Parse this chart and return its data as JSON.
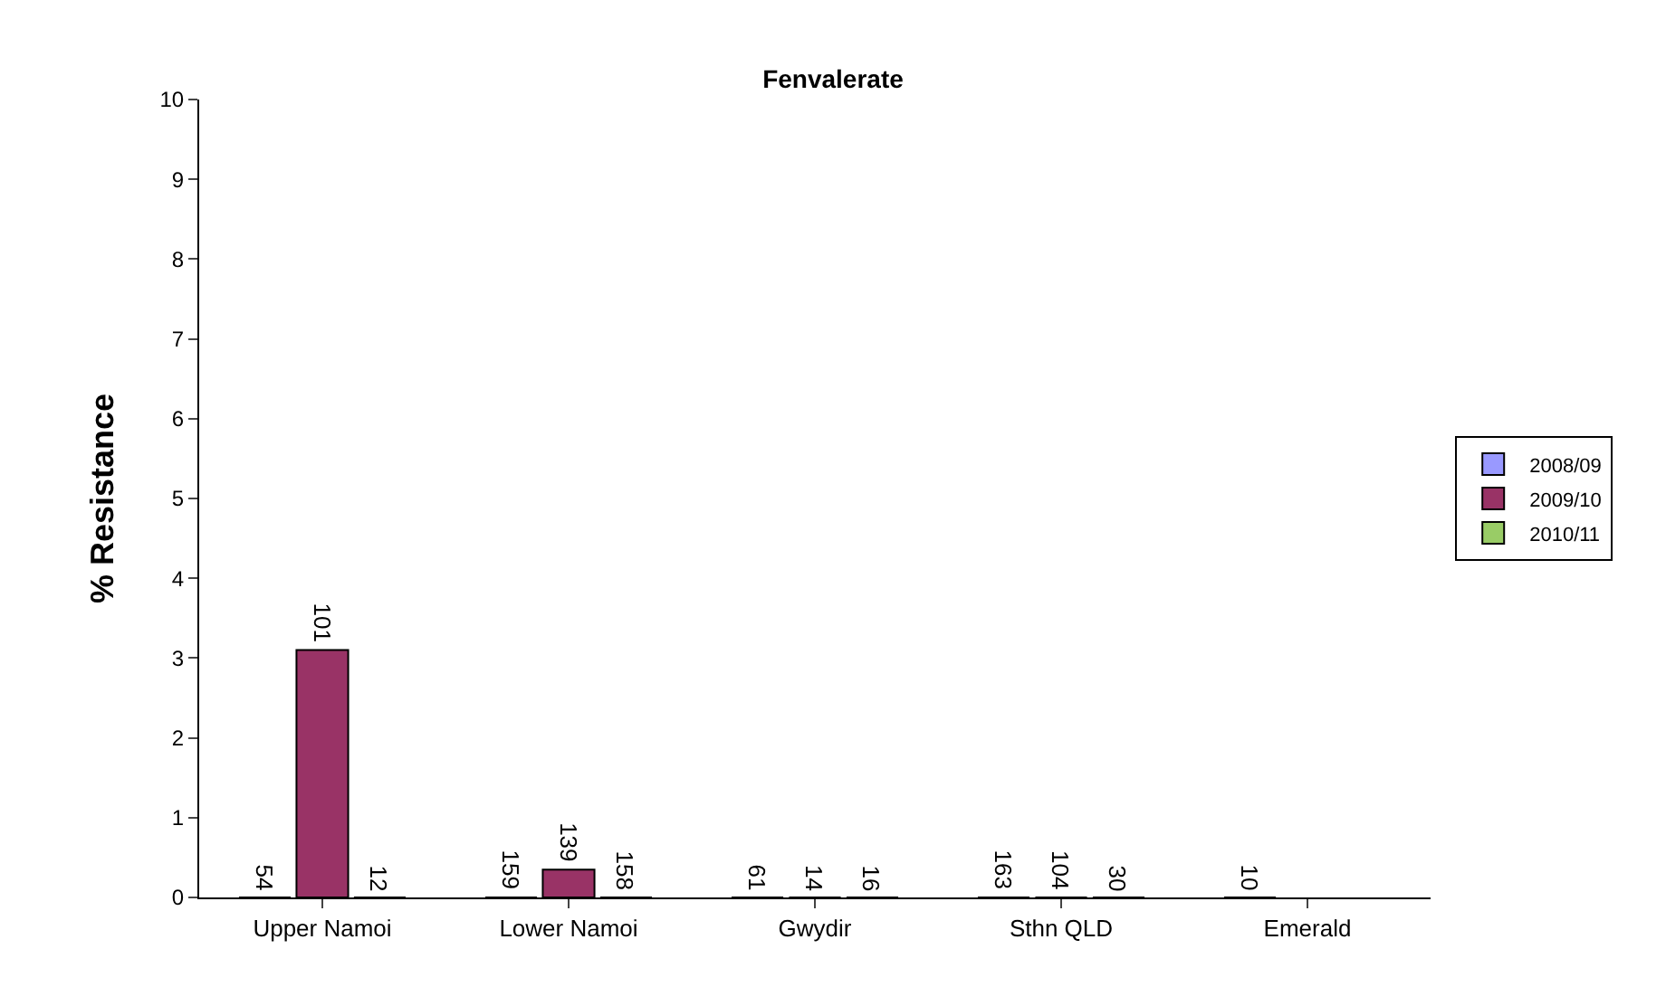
{
  "chart_data": {
    "type": "bar",
    "title": "Fenvalerate",
    "ylabel": "% Resistance",
    "categories": [
      "Upper Namoi",
      "Lower Namoi",
      "Gwydir",
      "Sthn QLD",
      "Emerald"
    ],
    "series": [
      {
        "name": "2008/09",
        "color": "#9999ff",
        "values": [
          0,
          0,
          0,
          0,
          0
        ]
      },
      {
        "name": "2009/10",
        "color": "#993366",
        "values": [
          3.1,
          0.35,
          0,
          0,
          null
        ]
      },
      {
        "name": "2010/11",
        "color": "#99cc66",
        "values": [
          0,
          0,
          0,
          0,
          null
        ]
      }
    ],
    "annotations": [
      {
        "text": "54",
        "x": "Upper Namoi",
        "y": 0
      },
      {
        "text": "101",
        "x": "Upper Namoi",
        "y": 3.1
      },
      {
        "text": "12",
        "x": "Upper Namoi",
        "y": 0
      },
      {
        "text": "159",
        "x": "Lower Namoi",
        "y": 0
      },
      {
        "text": "139",
        "x": "Lower Namoi",
        "y": 0.35
      },
      {
        "text": "158",
        "x": "Lower Namoi",
        "y": 0
      },
      {
        "text": "61",
        "x": "Gwydir",
        "y": 0
      },
      {
        "text": "14",
        "x": "Gwydir",
        "y": 0
      },
      {
        "text": "16",
        "x": "Gwydir",
        "y": 0
      },
      {
        "text": "163",
        "x": "Sthn QLD",
        "y": 0
      },
      {
        "text": "104",
        "x": "Sthn QLD",
        "y": 0
      },
      {
        "text": "30",
        "x": "Sthn QLD",
        "y": 0
      },
      {
        "text": "10",
        "x": "Emerald",
        "y": 0
      }
    ],
    "ylim": [
      0,
      10
    ],
    "yticks": [
      0,
      1,
      2,
      3,
      4,
      5,
      6,
      7,
      8,
      9,
      10
    ],
    "grid": false,
    "legend": "right"
  }
}
